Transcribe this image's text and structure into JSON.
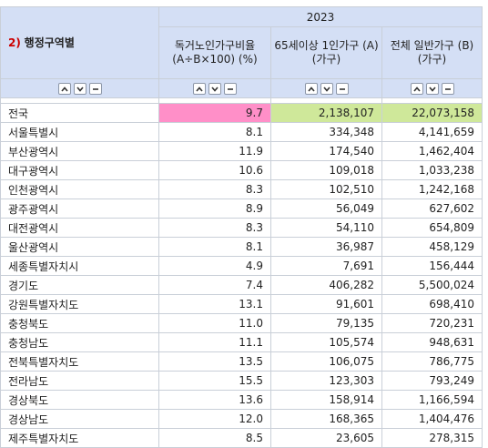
{
  "header": {
    "year": "2023",
    "corner_number": "2)",
    "corner_label": "행정구역별",
    "columns": [
      {
        "label": "독거노인가구비율 (A÷B×100) (%)"
      },
      {
        "label": "65세이상 1인가구 (A) (가구)"
      },
      {
        "label": "전체 일반가구 (B) (가구)"
      }
    ]
  },
  "controls": {
    "sort_asc_icon": "chevron-up-icon",
    "sort_desc_icon": "chevron-down-icon",
    "collapse_icon": "minus-icon"
  },
  "colors": {
    "header_bg": "#d4dff5",
    "highlight_pink": "#ff8fc8",
    "highlight_green": "#cfe89a",
    "corner_number": "#cc0000"
  },
  "rows": [
    {
      "name": "전국",
      "ratio": "9.7",
      "elderly": "2,138,107",
      "total": "22,073,158"
    },
    {
      "name": "서울특별시",
      "ratio": "8.1",
      "elderly": "334,348",
      "total": "4,141,659"
    },
    {
      "name": "부산광역시",
      "ratio": "11.9",
      "elderly": "174,540",
      "total": "1,462,404"
    },
    {
      "name": "대구광역시",
      "ratio": "10.6",
      "elderly": "109,018",
      "total": "1,033,238"
    },
    {
      "name": "인천광역시",
      "ratio": "8.3",
      "elderly": "102,510",
      "total": "1,242,168"
    },
    {
      "name": "광주광역시",
      "ratio": "8.9",
      "elderly": "56,049",
      "total": "627,602"
    },
    {
      "name": "대전광역시",
      "ratio": "8.3",
      "elderly": "54,110",
      "total": "654,809"
    },
    {
      "name": "울산광역시",
      "ratio": "8.1",
      "elderly": "36,987",
      "total": "458,129"
    },
    {
      "name": "세종특별자치시",
      "ratio": "4.9",
      "elderly": "7,691",
      "total": "156,444"
    },
    {
      "name": "경기도",
      "ratio": "7.4",
      "elderly": "406,282",
      "total": "5,500,024"
    },
    {
      "name": "강원특별자치도",
      "ratio": "13.1",
      "elderly": "91,601",
      "total": "698,410"
    },
    {
      "name": "충청북도",
      "ratio": "11.0",
      "elderly": "79,135",
      "total": "720,231"
    },
    {
      "name": "충청남도",
      "ratio": "11.1",
      "elderly": "105,574",
      "total": "948,631"
    },
    {
      "name": "전북특별자치도",
      "ratio": "13.5",
      "elderly": "106,075",
      "total": "786,775"
    },
    {
      "name": "전라남도",
      "ratio": "15.5",
      "elderly": "123,303",
      "total": "793,249"
    },
    {
      "name": "경상북도",
      "ratio": "13.6",
      "elderly": "158,914",
      "total": "1,166,594"
    },
    {
      "name": "경상남도",
      "ratio": "12.0",
      "elderly": "168,365",
      "total": "1,404,476"
    },
    {
      "name": "제주특별자치도",
      "ratio": "8.5",
      "elderly": "23,605",
      "total": "278,315"
    }
  ]
}
